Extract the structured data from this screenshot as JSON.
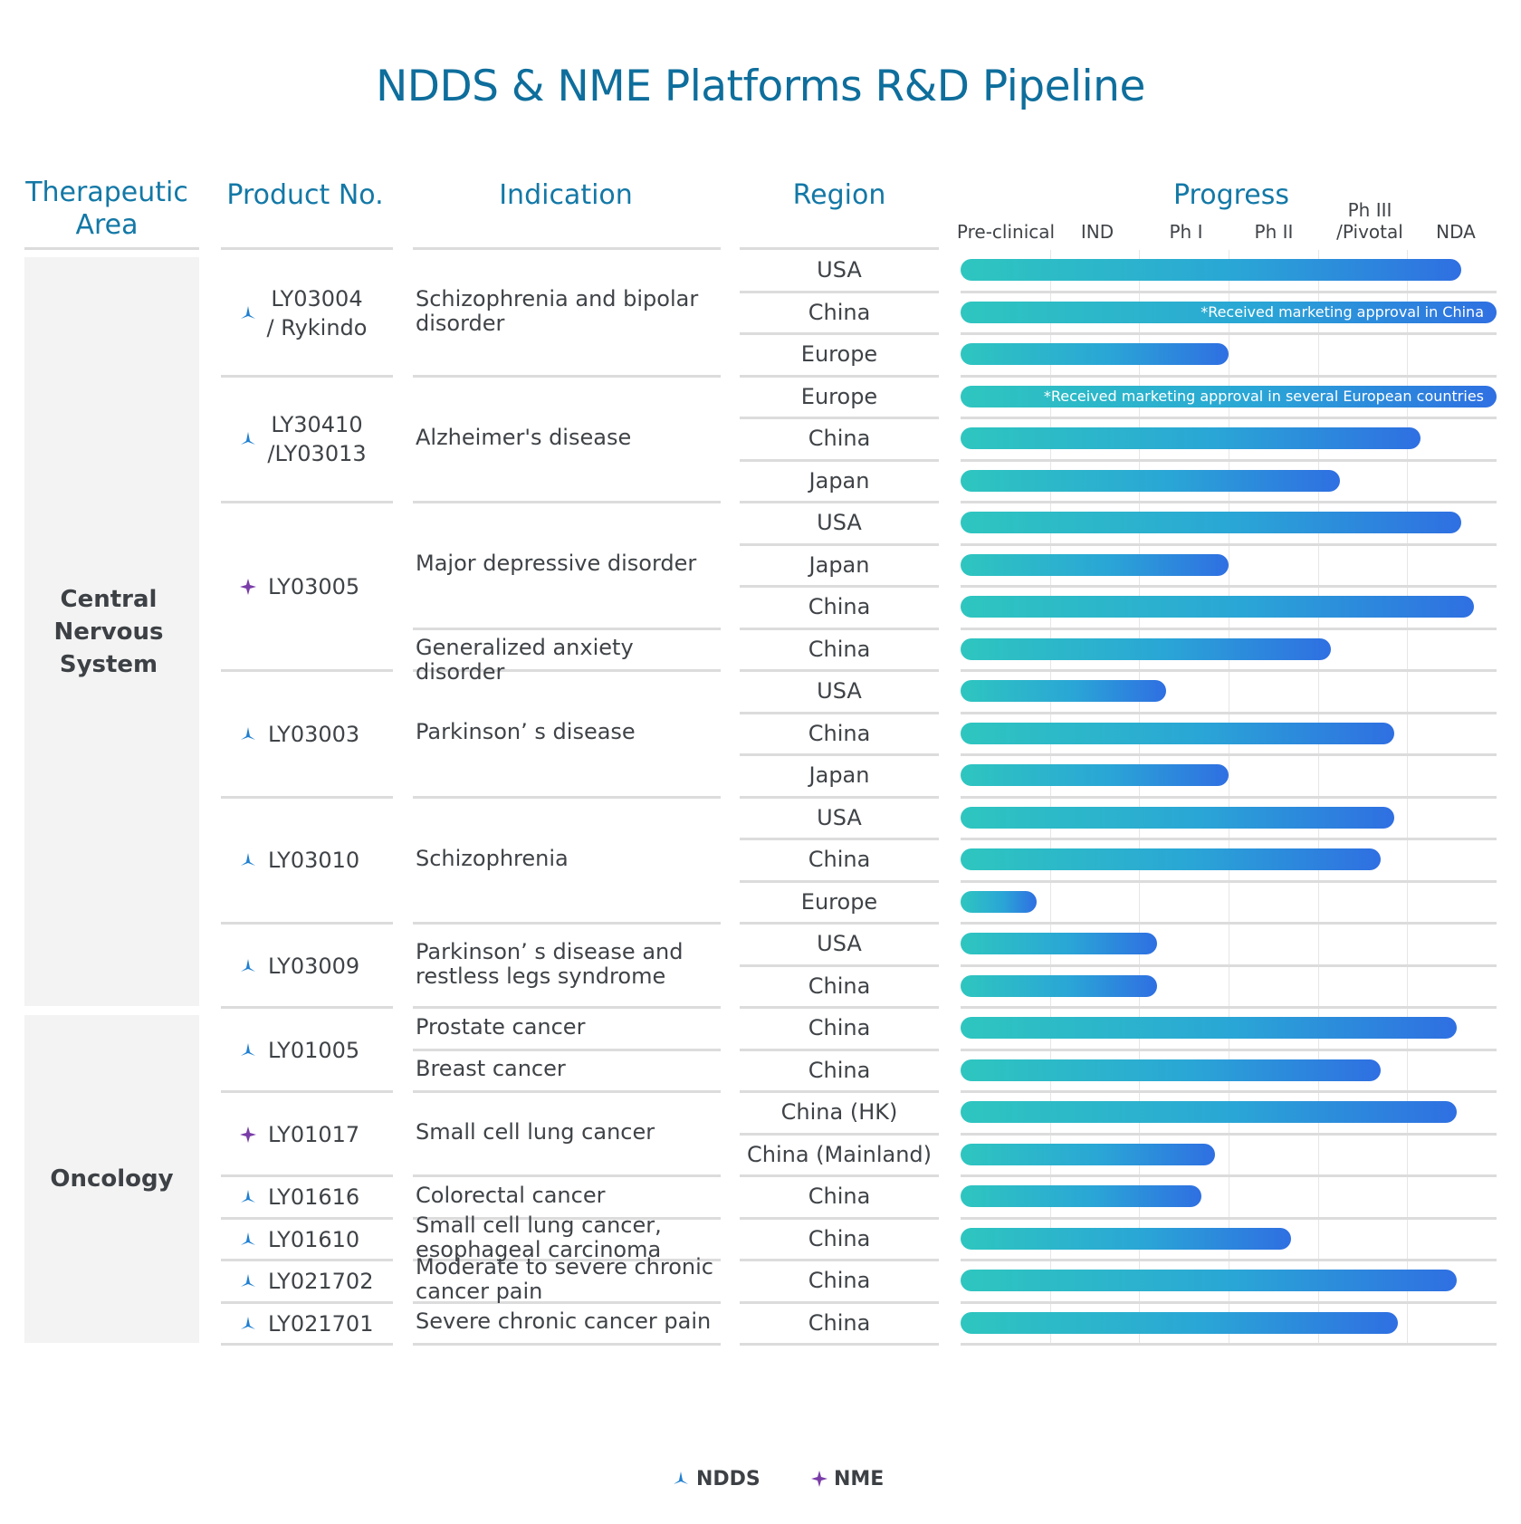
{
  "chart_data": {
    "type": "table",
    "title": "NDDS & NME Platforms R&D Pipeline",
    "headers": {
      "area": "Therapeutic Area",
      "product": "Product No.",
      "indication": "Indication",
      "region": "Region",
      "progress": "Progress"
    },
    "phases": [
      "Pre-clinical",
      "IND",
      "Ph I",
      "Ph II",
      "Ph III /Pivotal",
      "NDA"
    ],
    "phase_scale_note": "progress value measured in phase units from start of Pre-clinical (0) to end of NDA (6)",
    "areas": [
      {
        "name": "Central Nervous System"
      },
      {
        "name": "Oncology"
      }
    ],
    "products": [
      {
        "id": "LY03004 / Rykindo",
        "platform": "NDDS",
        "area": "Central Nervous System",
        "indications": [
          {
            "name": "Schizophrenia and bipolar disorder",
            "regions": [
              {
                "region": "USA",
                "progress": 5.6
              },
              {
                "region": "China",
                "progress": 6.0,
                "note": "*Received marketing approval in China"
              },
              {
                "region": "Europe",
                "progress": 3.0
              }
            ]
          }
        ]
      },
      {
        "id": "LY30410 /LY03013",
        "platform": "NDDS",
        "area": "Central Nervous System",
        "indications": [
          {
            "name": "Alzheimer's disease",
            "regions": [
              {
                "region": "Europe",
                "progress": 6.0,
                "note": "*Received marketing approval in several European countries"
              },
              {
                "region": "China",
                "progress": 5.15
              },
              {
                "region": "Japan",
                "progress": 4.25
              }
            ]
          }
        ]
      },
      {
        "id": "LY03005",
        "platform": "NME",
        "area": "Central Nervous System",
        "indications": [
          {
            "name": "Major depressive disorder",
            "regions": [
              {
                "region": "USA",
                "progress": 5.6
              },
              {
                "region": "Japan",
                "progress": 3.0
              },
              {
                "region": "China",
                "progress": 5.75
              }
            ]
          },
          {
            "name": "Generalized anxiety disorder",
            "regions": [
              {
                "region": "China",
                "progress": 4.15
              }
            ]
          }
        ]
      },
      {
        "id": "LY03003",
        "platform": "NDDS",
        "area": "Central Nervous System",
        "indications": [
          {
            "name": "Parkinson’ s disease",
            "regions": [
              {
                "region": "USA",
                "progress": 2.3
              },
              {
                "region": "China",
                "progress": 4.85
              },
              {
                "region": "Japan",
                "progress": 3.0
              }
            ]
          }
        ]
      },
      {
        "id": "LY03010",
        "platform": "NDDS",
        "area": "Central Nervous System",
        "indications": [
          {
            "name": "Schizophrenia",
            "regions": [
              {
                "region": "USA",
                "progress": 4.85
              },
              {
                "region": "China",
                "progress": 4.7
              },
              {
                "region": "Europe",
                "progress": 0.85
              }
            ]
          }
        ]
      },
      {
        "id": "LY03009",
        "platform": "NDDS",
        "area": "Central Nervous System",
        "indications": [
          {
            "name": "Parkinson’ s disease and restless legs syndrome",
            "regions": [
              {
                "region": "USA",
                "progress": 2.2
              },
              {
                "region": "China",
                "progress": 2.2
              }
            ]
          }
        ]
      },
      {
        "id": "LY01005",
        "platform": "NDDS",
        "area": "Oncology",
        "indications": [
          {
            "name": "Prostate cancer",
            "regions": [
              {
                "region": "China",
                "progress": 5.55
              }
            ]
          },
          {
            "name": "Breast cancer",
            "regions": [
              {
                "region": "China",
                "progress": 4.7
              }
            ]
          }
        ]
      },
      {
        "id": "LY01017",
        "platform": "NME",
        "area": "Oncology",
        "indications": [
          {
            "name": "Small cell lung cancer",
            "regions": [
              {
                "region": "China (HK)",
                "progress": 5.55
              },
              {
                "region": "China (Mainland)",
                "progress": 2.85
              }
            ]
          }
        ]
      },
      {
        "id": "LY01616",
        "platform": "NDDS",
        "area": "Oncology",
        "indications": [
          {
            "name": "Colorectal cancer",
            "regions": [
              {
                "region": "China",
                "progress": 2.7
              }
            ]
          }
        ]
      },
      {
        "id": "LY01610",
        "platform": "NDDS",
        "area": "Oncology",
        "indications": [
          {
            "name": "Small cell lung cancer, esophageal carcinoma",
            "regions": [
              {
                "region": "China",
                "progress": 3.7
              }
            ]
          }
        ]
      },
      {
        "id": "LY021702",
        "platform": "NDDS",
        "area": "Oncology",
        "indications": [
          {
            "name": "Moderate to severe chronic cancer pain",
            "regions": [
              {
                "region": "China",
                "progress": 5.55
              }
            ]
          }
        ]
      },
      {
        "id": "LY021701",
        "platform": "NDDS",
        "area": "Oncology",
        "indications": [
          {
            "name": "Severe chronic cancer pain",
            "regions": [
              {
                "region": "China",
                "progress": 4.9
              }
            ]
          }
        ]
      }
    ],
    "legend": [
      {
        "label": "NDDS",
        "symbol": "ndds-icon",
        "color": "#1f7fd1"
      },
      {
        "label": "NME",
        "symbol": "nme-icon",
        "color": "#7a3da8"
      }
    ]
  },
  "colors": {
    "title": "#0e6e9c",
    "header": "#1378a6",
    "bar_start": "#2ec6bf",
    "bar_end": "#2f6fe2",
    "ndds": "#1f7fd1",
    "nme": "#7a3da8"
  }
}
